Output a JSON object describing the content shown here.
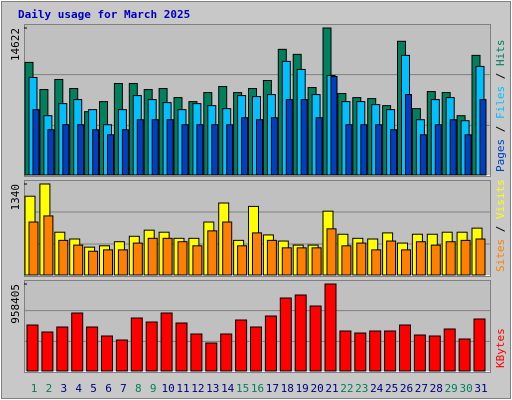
{
  "chart_data": {
    "type": "bar",
    "title": "Daily usage for March 2025",
    "title_color": "#0000c0",
    "categories": [
      "1",
      "2",
      "3",
      "4",
      "5",
      "6",
      "7",
      "8",
      "9",
      "10",
      "11",
      "12",
      "13",
      "14",
      "15",
      "16",
      "17",
      "18",
      "19",
      "20",
      "21",
      "22",
      "23",
      "24",
      "25",
      "26",
      "27",
      "28",
      "29",
      "30",
      "31"
    ],
    "category_colors": [
      "#00805c",
      "#00805c",
      "#000080",
      "#000080",
      "#000080",
      "#000080",
      "#000080",
      "#00805c",
      "#00805c",
      "#000080",
      "#000080",
      "#000080",
      "#000080",
      "#000080",
      "#00805c",
      "#00805c",
      "#000080",
      "#000080",
      "#000080",
      "#000080",
      "#000080",
      "#00805c",
      "#00805c",
      "#000080",
      "#000080",
      "#000080",
      "#000080",
      "#000080",
      "#00805c",
      "#00805c",
      "#000080"
    ],
    "legend_separator": " / ",
    "grid": true,
    "panels": [
      {
        "ylim": [
          0,
          14622
        ],
        "yticks": [
          14622
        ],
        "series": [
          {
            "name": "Hits",
            "color": "#00805c",
            "values": [
              11200,
              8500,
              9500,
              8600,
              6300,
              7300,
              9100,
              9100,
              8500,
              8600,
              7700,
              7300,
              8200,
              8800,
              8200,
              8600,
              9400,
              12500,
              12000,
              8700,
              14622,
              8100,
              7700,
              7600,
              6900,
              13300,
              6600,
              8300,
              8200,
              5900,
              11900
            ]
          },
          {
            "name": "Files",
            "color": "#00c0ff",
            "values": [
              9700,
              5900,
              7100,
              7500,
              6500,
              5000,
              6500,
              7900,
              7500,
              7200,
              6500,
              7100,
              6900,
              6600,
              7900,
              7800,
              8000,
              11300,
              10500,
              8000,
              9900,
              7300,
              7300,
              7000,
              6500,
              11900,
              5500,
              7500,
              7700,
              5400,
              10800
            ]
          },
          {
            "name": "Pages",
            "color": "#0040c0",
            "values": [
              6500,
              4500,
              5000,
              5000,
              4500,
              4000,
              4500,
              5500,
              5500,
              5500,
              5000,
              5000,
              5000,
              5000,
              5700,
              5500,
              5700,
              7500,
              7500,
              5700,
              9800,
              5000,
              5000,
              5000,
              4500,
              8000,
              4000,
              5000,
              5500,
              4000,
              7500
            ]
          }
        ]
      },
      {
        "ylim": [
          0,
          1340
        ],
        "yticks": [
          1340
        ],
        "series": [
          {
            "name": "Visits",
            "color": "#ffff00",
            "values": [
              1160,
              1340,
              630,
              530,
              410,
              430,
              490,
              570,
              660,
              630,
              540,
              540,
              780,
              1060,
              510,
              1010,
              590,
              500,
              440,
              440,
              940,
              600,
              540,
              530,
              620,
              470,
              600,
              600,
              630,
              630,
              690
            ]
          },
          {
            "name": "Sites",
            "color": "#ff8000",
            "values": [
              780,
              870,
              510,
              440,
              350,
              370,
              370,
              470,
              540,
              540,
              490,
              430,
              650,
              780,
              430,
              620,
              510,
              400,
              400,
              400,
              680,
              430,
              470,
              370,
              500,
              370,
              490,
              440,
              490,
              510,
              530
            ]
          }
        ]
      },
      {
        "ylim": [
          0,
          958405
        ],
        "yticks": [
          958405
        ],
        "series": [
          {
            "name": "KBytes",
            "color": "#ff0000",
            "values": [
              506700,
              429600,
              484700,
              638900,
              484700,
              385600,
              341500,
              583800,
              539800,
              638900,
              528800,
              407600,
              308400,
              407600,
              561800,
              484700,
              605900,
              804200,
              837200,
              716000,
              958405,
              440600,
              418600,
              440600,
              440600,
              506700,
              396600,
              385600,
              462700,
              352500,
              572800
            ]
          }
        ]
      }
    ]
  }
}
